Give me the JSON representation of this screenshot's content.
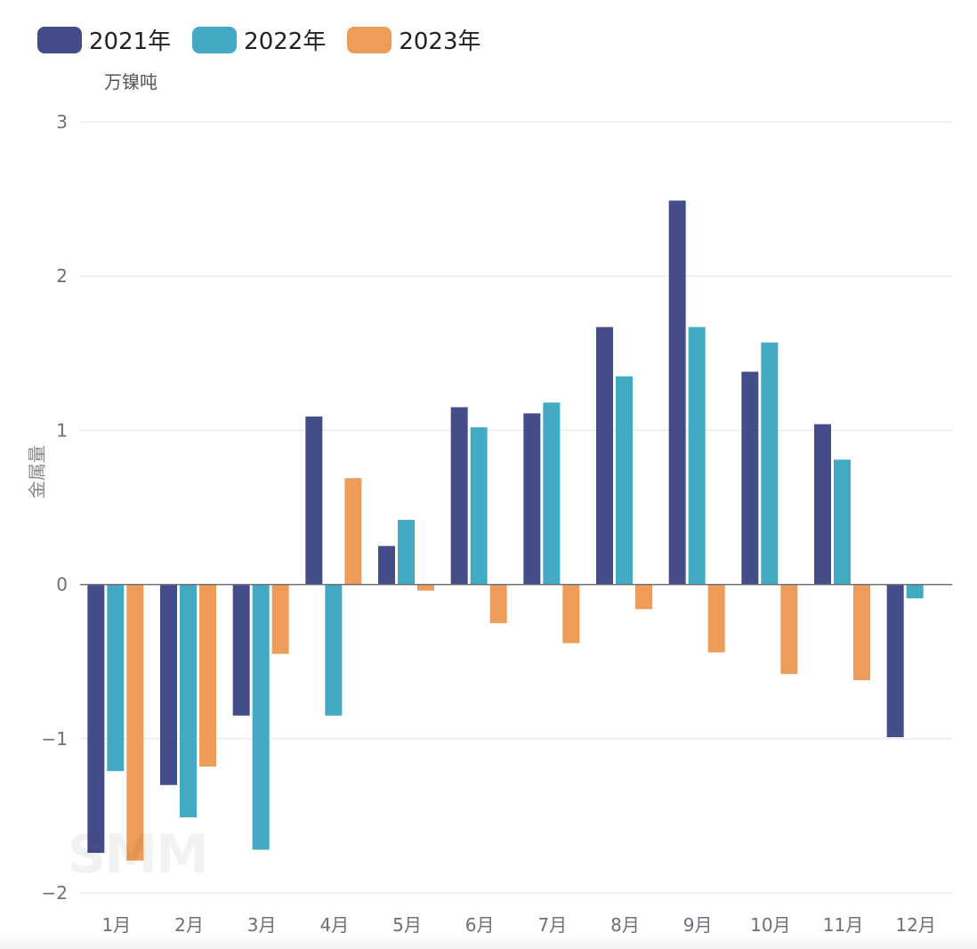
{
  "legend": [
    {
      "label": "2021年",
      "color": "#454C8A"
    },
    {
      "label": "2022年",
      "color": "#42AAC2"
    },
    {
      "label": "2023年",
      "color": "#EE9C59"
    }
  ],
  "unit": "万镍吨",
  "ylabel": "金属量",
  "watermark": "SMM",
  "chart_data": {
    "type": "bar",
    "categories": [
      "1月",
      "2月",
      "3月",
      "4月",
      "5月",
      "6月",
      "7月",
      "8月",
      "9月",
      "10月",
      "11月",
      "12月"
    ],
    "series": [
      {
        "name": "2021年",
        "color": "#454C8A",
        "values": [
          -1.74,
          -1.3,
          -0.85,
          1.09,
          0.25,
          1.15,
          1.11,
          1.67,
          2.49,
          1.38,
          1.04,
          -0.99
        ]
      },
      {
        "name": "2022年",
        "color": "#42AAC2",
        "values": [
          -1.21,
          -1.51,
          -1.72,
          -0.85,
          0.42,
          1.02,
          1.18,
          1.35,
          1.67,
          1.57,
          0.81,
          -0.09
        ]
      },
      {
        "name": "2023年",
        "color": "#EE9C59",
        "values": [
          -1.79,
          -1.18,
          -0.45,
          0.69,
          -0.04,
          -0.25,
          -0.38,
          -0.16,
          -0.44,
          -0.58,
          -0.62,
          null
        ]
      }
    ],
    "ylim": [
      -2,
      3
    ],
    "yticks": [
      {
        "value": -2,
        "label": "−2"
      },
      {
        "value": -1,
        "label": "−1"
      },
      {
        "value": 0,
        "label": "0"
      },
      {
        "value": 1,
        "label": "1"
      },
      {
        "value": 2,
        "label": "2"
      },
      {
        "value": 3,
        "label": "3"
      }
    ],
    "ylabel": "金属量",
    "unit": "万镍吨",
    "grid": true,
    "legend_position": "top-left"
  }
}
